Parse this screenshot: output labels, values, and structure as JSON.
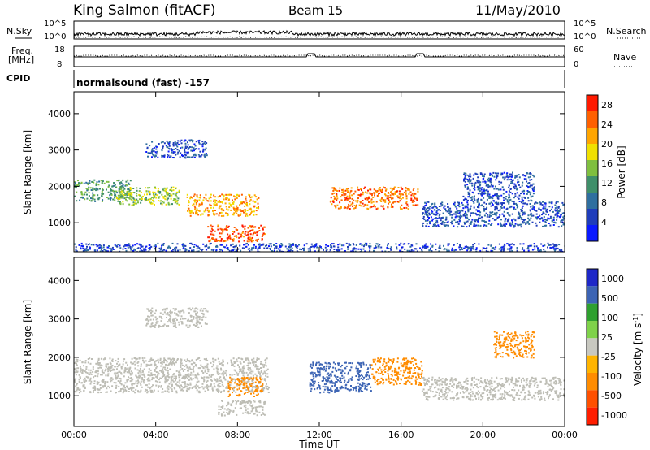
{
  "header": {
    "station": "King Salmon (fitACF)",
    "beam": "Beam 15",
    "date": "11/May/2010"
  },
  "status_panels": {
    "nsky_label": "N.Sky",
    "nsearch_label": "N.Search",
    "noise_ticks": [
      "10^5",
      "10^0"
    ],
    "freq_label_line1": "Freq.",
    "freq_label_line2": "[MHz]",
    "freq_ticks": [
      "18",
      "8"
    ],
    "nave_label": "Nave",
    "nave_ticks": [
      "60",
      "0"
    ],
    "cpid_label": "CPID",
    "cpid_value": "normalsound (fast) -157"
  },
  "colors": {
    "power_scale": [
      "#0a1aff",
      "#1f3dbb",
      "#2f6f9f",
      "#3f8f6a",
      "#7fbf3f",
      "#f0e000",
      "#ffa500",
      "#ff6000",
      "#ff1a00"
    ],
    "velocity_scale": [
      "#1e28c8",
      "#3c64b4",
      "#2fa02f",
      "#7fd24a",
      "#c8c8c0",
      "#ffb400",
      "#ff8c00",
      "#ff5000",
      "#ff1e00"
    ],
    "ground_scatter": "#bdbdb5"
  },
  "chart_data": [
    {
      "type": "heatmap",
      "panel": "power",
      "title": "",
      "xlabel": "Time UT",
      "ylabel": "Slant Range [km]",
      "x_ticks": [
        "00:00",
        "04:00",
        "08:00",
        "12:00",
        "16:00",
        "20:00",
        "00:00"
      ],
      "x_range_hours": [
        0,
        24
      ],
      "y_ticks": [
        "1000",
        "2000",
        "3000",
        "4000"
      ],
      "ylim": [
        200,
        4600
      ],
      "colorbar_label": "Power [dB]",
      "colorbar_ticks": [
        "28",
        "24",
        "20",
        "16",
        "12",
        "8",
        "4"
      ],
      "colorbar_range": [
        0,
        30
      ],
      "regions": [
        {
          "t": [
            0.0,
            2.8
          ],
          "r": [
            1600,
            2200
          ],
          "level": 12
        },
        {
          "t": [
            2.0,
            5.2
          ],
          "r": [
            1500,
            2000
          ],
          "level": 16
        },
        {
          "t": [
            5.5,
            9.0
          ],
          "r": [
            1200,
            1800
          ],
          "level": 22
        },
        {
          "t": [
            6.5,
            9.3
          ],
          "r": [
            500,
            950
          ],
          "level": 26
        },
        {
          "t": [
            3.5,
            6.5
          ],
          "r": [
            2800,
            3300
          ],
          "level": 6
        },
        {
          "t": [
            12.5,
            16.8
          ],
          "r": [
            1400,
            2000
          ],
          "level": 24
        },
        {
          "t": [
            17.0,
            24.0
          ],
          "r": [
            900,
            1600
          ],
          "level": 6
        },
        {
          "t": [
            19.0,
            22.5
          ],
          "r": [
            1600,
            2400
          ],
          "level": 6
        },
        {
          "t": [
            0.0,
            24.0
          ],
          "r": [
            200,
            450
          ],
          "level": 5
        }
      ]
    },
    {
      "type": "heatmap",
      "panel": "velocity",
      "title": "",
      "xlabel": "Time UT",
      "ylabel": "Slant Range [km]",
      "x_ticks": [
        "00:00",
        "04:00",
        "08:00",
        "12:00",
        "16:00",
        "20:00",
        "00:00"
      ],
      "x_range_hours": [
        0,
        24
      ],
      "y_ticks": [
        "1000",
        "2000",
        "3000",
        "4000"
      ],
      "ylim": [
        200,
        4600
      ],
      "colorbar_label": "Velocity [m s",
      "colorbar_label_sup": "-1",
      "colorbar_label_end": "]",
      "colorbar_ticks": [
        "1000",
        "500",
        "100",
        "25",
        "-25",
        "-100",
        "-500",
        "-1000"
      ],
      "regions": [
        {
          "t": [
            0.0,
            9.5
          ],
          "r": [
            1100,
            2000
          ],
          "velocity": 0,
          "ground": true
        },
        {
          "t": [
            3.5,
            6.5
          ],
          "r": [
            2800,
            3300
          ],
          "velocity": 0,
          "ground": true
        },
        {
          "t": [
            7.5,
            9.2
          ],
          "r": [
            1000,
            1500
          ],
          "velocity": -150
        },
        {
          "t": [
            7.0,
            9.3
          ],
          "r": [
            500,
            900
          ],
          "velocity": 0,
          "ground": true
        },
        {
          "t": [
            11.5,
            14.5
          ],
          "r": [
            1100,
            1900
          ],
          "velocity": 150
        },
        {
          "t": [
            14.5,
            17.0
          ],
          "r": [
            1300,
            2000
          ],
          "velocity": -150
        },
        {
          "t": [
            17.0,
            24.0
          ],
          "r": [
            900,
            1500
          ],
          "velocity": 0,
          "ground": true
        },
        {
          "t": [
            20.5,
            22.5
          ],
          "r": [
            2000,
            2700
          ],
          "velocity": -150
        }
      ]
    }
  ]
}
